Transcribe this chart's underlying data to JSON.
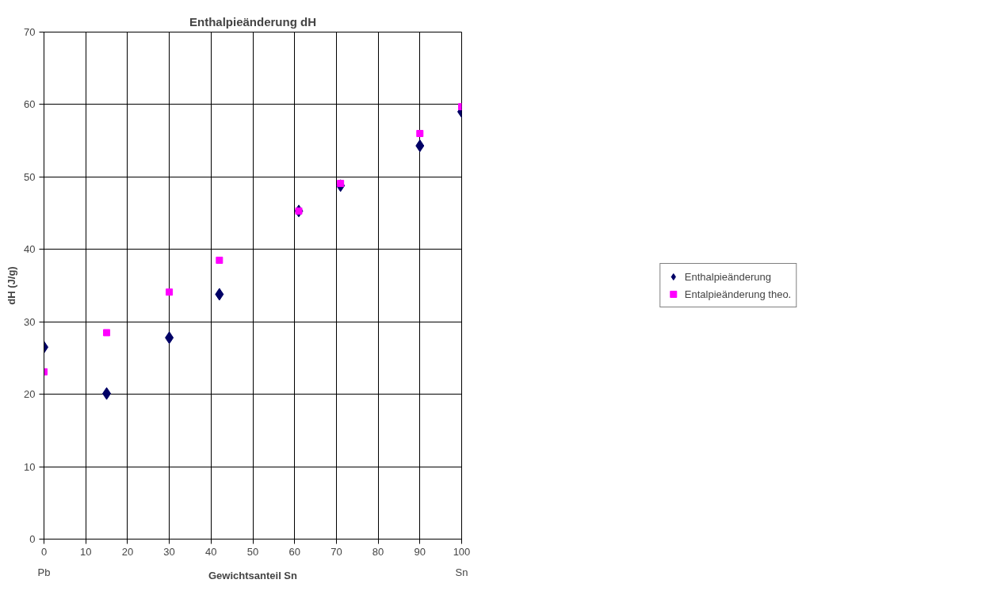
{
  "chart_data": {
    "type": "scatter",
    "title": "Enthalpieänderung dH",
    "xlabel": "Gewichtsanteil Sn",
    "ylabel": "dH (J/g)",
    "xlim": [
      0,
      100
    ],
    "xticks": [
      0,
      10,
      20,
      30,
      40,
      50,
      60,
      70,
      80,
      90,
      100
    ],
    "ylim": [
      0,
      70
    ],
    "yticks": [
      0,
      10,
      20,
      30,
      40,
      50,
      60,
      70
    ],
    "grid": true,
    "legend": "right",
    "annotations": [
      "Pb",
      "Sn"
    ],
    "series": [
      {
        "name": "Enthalpieänderung",
        "color": "#000066",
        "marker": "diamond",
        "x": [
          0,
          15,
          30,
          42,
          61,
          71,
          90,
          100
        ],
        "values": [
          26.5,
          20.1,
          27.8,
          33.8,
          45.3,
          48.8,
          54.3,
          59.0
        ]
      },
      {
        "name": "Entalpieänderung theo.",
        "color": "#ff00ff",
        "marker": "square",
        "x": [
          0,
          15,
          30,
          42,
          61,
          71,
          90,
          100
        ],
        "values": [
          23.1,
          28.5,
          34.1,
          38.5,
          45.3,
          49.1,
          56.0,
          59.7
        ]
      }
    ]
  }
}
